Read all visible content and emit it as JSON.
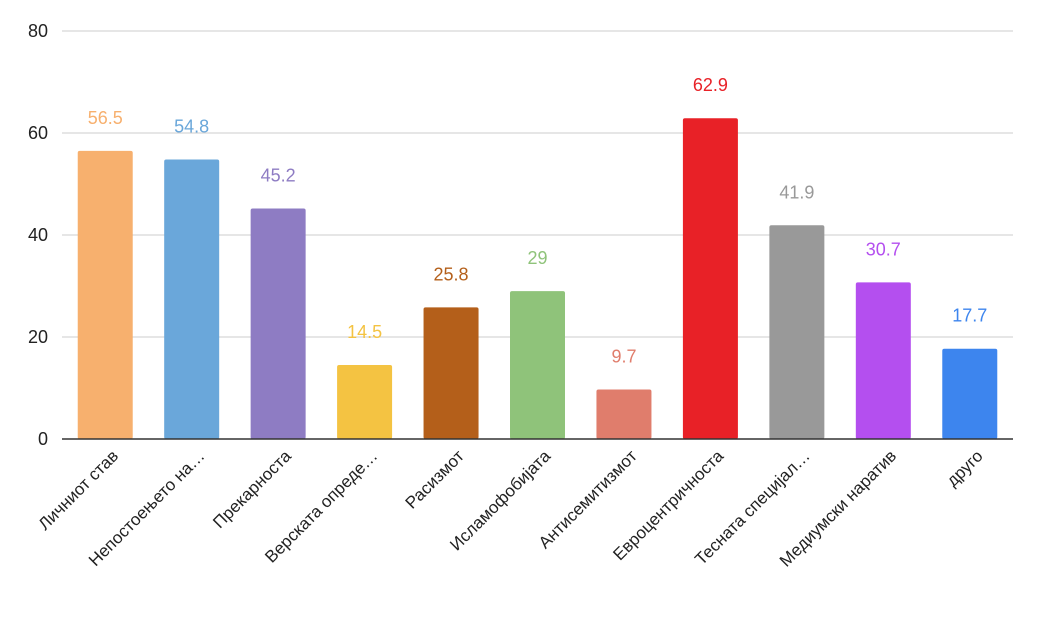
{
  "chart_data": {
    "type": "bar",
    "title": "",
    "xlabel": "",
    "ylabel": "",
    "ylim": [
      0,
      80
    ],
    "yticks": [
      0,
      20,
      40,
      60,
      80
    ],
    "grid": true,
    "legend": "none",
    "categories": [
      "Личниот став",
      "Непостоењето на…",
      "Прекарноста",
      "Верската опреде…",
      "Расизмот",
      "Исламофобијата",
      "Антисемитизмот",
      "Евроцентричноста",
      "Тесната специјал…",
      "Медиумски наратив",
      "друго"
    ],
    "values": [
      56.5,
      54.8,
      45.2,
      14.5,
      25.8,
      29,
      9.7,
      62.9,
      41.9,
      30.7,
      17.7
    ],
    "value_labels": [
      "56.5",
      "54.8",
      "45.2",
      "14.5",
      "25.8",
      "29",
      "9.7",
      "62.9",
      "41.9",
      "30.7",
      "17.7"
    ],
    "colors": [
      "#F7B06E",
      "#6AA7DA",
      "#8E7CC3",
      "#F4C342",
      "#B45F1A",
      "#8FC37A",
      "#E07D6C",
      "#E82127",
      "#999999",
      "#B44FEF",
      "#3D85EE"
    ]
  }
}
